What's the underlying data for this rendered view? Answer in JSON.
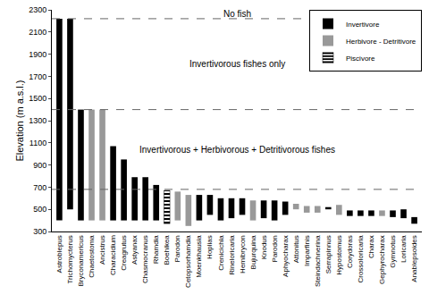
{
  "chart_data": {
    "type": "bar",
    "y_label": "Elevation (m a.s.l.)",
    "categories": [
      "Astroblepus",
      "Trichomycterus",
      "Bryconamericus",
      "Chaetostoma",
      "Ancistrus",
      "Characidium",
      "Creagrutus",
      "Astyanax",
      "Chasmocranus",
      "Rhamdia",
      "Boehlkea",
      "Parodon",
      "Cetopsorhamdia",
      "Moenkhausia",
      "Hoplias",
      "Crenicichla",
      "Rineloricaria",
      "Hemibrycon",
      "Bujurquina",
      "Knodus",
      "Parodon",
      "Aphyocharax",
      "Attonitus",
      "Imparfinis",
      "Steindachnerina",
      "Serrapinnus",
      "Hypostomus",
      "Corydoras",
      "Crossoloricaria",
      "Charax",
      "Gephyrocharax",
      "Gymnotus",
      "Loricaria",
      "Anablepsoides"
    ],
    "series": [
      {
        "name": "Invertivore",
        "color": "#000000",
        "marker": "solid",
        "low": [
          400,
          500,
          400,
          null,
          null,
          400,
          400,
          400,
          400,
          400,
          null,
          null,
          null,
          400,
          450,
          400,
          420,
          450,
          null,
          420,
          400,
          450,
          null,
          null,
          null,
          500,
          null,
          440,
          440,
          440,
          null,
          430,
          420,
          370
        ],
        "high": [
          2220,
          2220,
          1400,
          null,
          null,
          1070,
          950,
          790,
          790,
          720,
          null,
          null,
          null,
          630,
          630,
          600,
          600,
          600,
          null,
          580,
          580,
          570,
          null,
          null,
          null,
          520,
          null,
          490,
          490,
          490,
          null,
          490,
          500,
          430
        ]
      },
      {
        "name": "Herbivore - Detritivore",
        "color": "#999999",
        "marker": "solid",
        "low": [
          null,
          null,
          null,
          400,
          400,
          null,
          null,
          null,
          null,
          null,
          null,
          400,
          350,
          null,
          null,
          null,
          null,
          null,
          400,
          null,
          null,
          null,
          500,
          470,
          470,
          null,
          450,
          null,
          null,
          null,
          440,
          null,
          null,
          null
        ],
        "high": [
          null,
          null,
          null,
          1400,
          1400,
          null,
          null,
          null,
          null,
          null,
          null,
          660,
          630,
          null,
          null,
          null,
          null,
          null,
          580,
          null,
          null,
          null,
          550,
          530,
          530,
          null,
          540,
          null,
          null,
          null,
          490,
          null,
          null,
          null
        ]
      },
      {
        "name": "Piscivore",
        "color": "#000000",
        "marker": "striped",
        "low": [
          null,
          null,
          null,
          null,
          null,
          null,
          null,
          null,
          null,
          null,
          370,
          null,
          null,
          null,
          null,
          null,
          null,
          null,
          null,
          null,
          null,
          null,
          null,
          null,
          null,
          null,
          null,
          null,
          null,
          null,
          null,
          null,
          null,
          null
        ],
        "high": [
          null,
          null,
          null,
          null,
          null,
          null,
          null,
          null,
          null,
          null,
          670,
          null,
          null,
          null,
          null,
          null,
          null,
          null,
          null,
          null,
          null,
          null,
          null,
          null,
          null,
          null,
          null,
          null,
          null,
          null,
          null,
          null,
          null,
          null
        ]
      }
    ],
    "zones": [
      {
        "value": 2220,
        "label": "No fish"
      },
      {
        "value": 1400,
        "label": "Invertivorous fishes only"
      },
      {
        "value": 680,
        "label": "Invertivorous + Herbivorous + Detritivorous fishes"
      }
    ],
    "ylim": [
      300,
      2300
    ],
    "yticks": [
      300,
      500,
      700,
      900,
      1100,
      1300,
      1500,
      1700,
      1900,
      2100,
      2300
    ],
    "grid": false,
    "legend": "top-right"
  }
}
